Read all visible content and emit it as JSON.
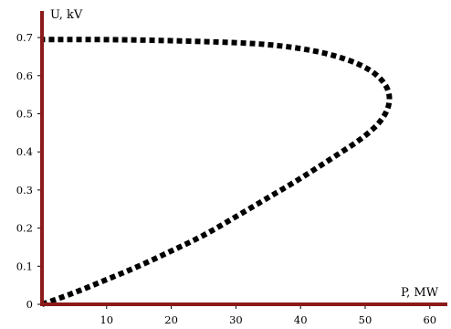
{
  "chart_data": {
    "type": "line",
    "xlabel": "P, MW",
    "ylabel": "U, kV",
    "xlim": [
      0,
      62
    ],
    "ylim": [
      0,
      0.75
    ],
    "x_ticks": [
      "10",
      "20",
      "30",
      "40",
      "50",
      "60"
    ],
    "y_ticks": [
      "0",
      "0.1",
      "0.2",
      "0.3",
      "0.4",
      "0.5",
      "0.6",
      "0.7"
    ],
    "grid": false,
    "legend": "none",
    "axis_color": "#8b1a1a",
    "series": [
      {
        "color": "#000000",
        "line_style": "dotted",
        "points": [
          {
            "x": 0,
            "y": 0.0
          },
          {
            "x": 5,
            "y": 0.03
          },
          {
            "x": 10,
            "y": 0.065
          },
          {
            "x": 15,
            "y": 0.1
          },
          {
            "x": 20,
            "y": 0.14
          },
          {
            "x": 25,
            "y": 0.18
          },
          {
            "x": 30,
            "y": 0.23
          },
          {
            "x": 35,
            "y": 0.28
          },
          {
            "x": 40,
            "y": 0.33
          },
          {
            "x": 45,
            "y": 0.385
          },
          {
            "x": 50,
            "y": 0.44
          },
          {
            "x": 53,
            "y": 0.49
          },
          {
            "x": 54,
            "y": 0.54
          },
          {
            "x": 53,
            "y": 0.585
          },
          {
            "x": 50,
            "y": 0.625
          },
          {
            "x": 45,
            "y": 0.655
          },
          {
            "x": 40,
            "y": 0.672
          },
          {
            "x": 35,
            "y": 0.682
          },
          {
            "x": 30,
            "y": 0.687
          },
          {
            "x": 20,
            "y": 0.692
          },
          {
            "x": 10,
            "y": 0.695
          },
          {
            "x": 0,
            "y": 0.695
          }
        ]
      }
    ]
  }
}
